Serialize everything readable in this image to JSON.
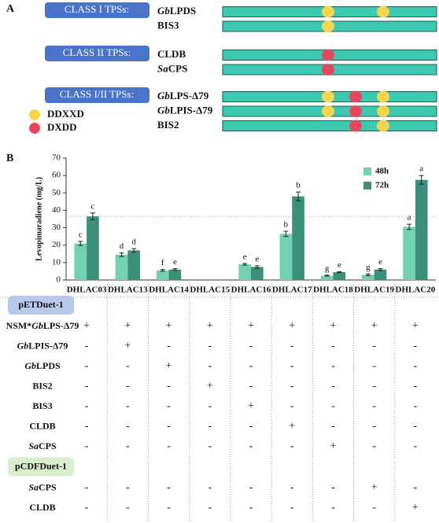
{
  "panel_a": {
    "label": "A",
    "groups": [
      {
        "title": "CLASS I TPSs:",
        "genes": [
          {
            "parts": [
              {
                "text": "Gb",
                "italic": true
              },
              {
                "text": "LPDS"
              }
            ],
            "motifs": [
              "DDXXD",
              null,
              "DDXXD"
            ]
          },
          {
            "parts": [
              {
                "text": "BIS3"
              }
            ],
            "motifs": [
              "DDXXD",
              null,
              null
            ]
          }
        ]
      },
      {
        "title": "CLASS II TPSs:",
        "genes": [
          {
            "parts": [
              {
                "text": "CLDB"
              }
            ],
            "motifs": [
              "DXDD",
              null,
              null
            ]
          },
          {
            "parts": [
              {
                "text": "Sa",
                "italic": true
              },
              {
                "text": "CPS"
              }
            ],
            "motifs": [
              "DXDD",
              null,
              null
            ]
          }
        ]
      },
      {
        "title": "CLASS I/II TPSs:",
        "genes": [
          {
            "parts": [
              {
                "text": "Gb",
                "italic": true
              },
              {
                "text": "LPS-Δ79"
              }
            ],
            "motifs": [
              "DDXXD",
              "DXDD",
              "DDXXD"
            ]
          },
          {
            "parts": [
              {
                "text": "Gb",
                "italic": true
              },
              {
                "text": "LPIS-Δ79"
              }
            ],
            "motifs": [
              "DDXXD",
              "DXDD",
              "DDXXD"
            ]
          },
          {
            "parts": [
              {
                "text": "BIS2"
              }
            ],
            "motifs": [
              null,
              "DXDD",
              "DDXXD"
            ]
          }
        ]
      }
    ],
    "legend": [
      {
        "name": "DDXXD",
        "color": "#f7d54e"
      },
      {
        "name": "DXDD",
        "color": "#e6475d"
      }
    ]
  },
  "panel_b_label": "B",
  "chart_data": {
    "type": "bar",
    "y_label": "Levopimaradiene (mg/L)",
    "categories": [
      "DHLAC03",
      "DHLAC13",
      "DHLAC14",
      "DHLAC15",
      "DHLAC16",
      "DHLAC17",
      "DHLAC18",
      "DHLAC19",
      "DHLAC20"
    ],
    "series": [
      {
        "name": "48h",
        "color": "#72d1b0",
        "values": [
          21,
          14.5,
          5.5,
          0,
          9,
          26.5,
          2.5,
          3,
          30.5
        ],
        "errors": [
          1.2,
          1,
          0.5,
          0,
          0.5,
          1.5,
          0.3,
          0.5,
          1.5
        ],
        "letters": [
          "c",
          "d",
          "f",
          null,
          "e",
          "b",
          "g",
          "g",
          "a"
        ]
      },
      {
        "name": "72h",
        "color": "#3c8f7b",
        "values": [
          36.5,
          17,
          6,
          0,
          7.5,
          48,
          4.5,
          6,
          57.5
        ],
        "errors": [
          2,
          1,
          0.5,
          0,
          0.7,
          2.5,
          0.3,
          0.5,
          2.5
        ],
        "letters": [
          "c",
          "d",
          "e",
          null,
          "e",
          "b",
          "e",
          "e",
          "a"
        ]
      }
    ],
    "reference_line": 36.5,
    "ylim": [
      0,
      70
    ],
    "yticks": [
      0,
      10,
      20,
      30,
      40,
      50,
      60,
      70
    ],
    "legend": "top-right"
  },
  "table": {
    "sections": [
      {
        "title": "pETDuet-1",
        "color": "#b9c9ee",
        "rows": [
          {
            "parts": [
              {
                "text": "NSM*"
              },
              {
                "text": "Gb",
                "italic": true
              },
              {
                "text": "LPS-Δ79"
              }
            ],
            "cells": [
              "+",
              "+",
              "+",
              "+",
              "+",
              "+",
              "+",
              "+",
              "+"
            ]
          },
          {
            "parts": [
              {
                "text": "Gb",
                "italic": true
              },
              {
                "text": "LPIS-Δ79"
              }
            ],
            "cells": [
              "-",
              "+",
              "-",
              "-",
              "-",
              "-",
              "-",
              "-",
              "-"
            ]
          },
          {
            "parts": [
              {
                "text": "Gb",
                "italic": true
              },
              {
                "text": "LPDS"
              }
            ],
            "cells": [
              "-",
              "-",
              "+",
              "-",
              "-",
              "-",
              "-",
              "-",
              "-"
            ]
          },
          {
            "parts": [
              {
                "text": "BIS2"
              }
            ],
            "cells": [
              "-",
              "-",
              "-",
              "+",
              "-",
              "-",
              "-",
              "-",
              "-"
            ]
          },
          {
            "parts": [
              {
                "text": "BIS3"
              }
            ],
            "cells": [
              "-",
              "-",
              "-",
              "-",
              "+",
              "-",
              "-",
              "-",
              "-"
            ]
          },
          {
            "parts": [
              {
                "text": "CLDB"
              }
            ],
            "cells": [
              "-",
              "-",
              "-",
              "-",
              "-",
              "+",
              "-",
              "-",
              "-"
            ]
          },
          {
            "parts": [
              {
                "text": "Sa",
                "italic": true
              },
              {
                "text": "CPS"
              }
            ],
            "cells": [
              "-",
              "-",
              "-",
              "-",
              "-",
              "-",
              "+",
              "-",
              "-"
            ]
          }
        ]
      },
      {
        "title": "pCDFDuet-1",
        "color": "#d9eece",
        "rows": [
          {
            "parts": [
              {
                "text": "Sa",
                "italic": true
              },
              {
                "text": "CPS"
              }
            ],
            "cells": [
              "-",
              "-",
              "-",
              "-",
              "-",
              "-",
              "-",
              "+",
              "-"
            ]
          },
          {
            "parts": [
              {
                "text": "CLDB"
              }
            ],
            "cells": [
              "-",
              "-",
              "-",
              "-",
              "-",
              "-",
              "-",
              "-",
              "+"
            ]
          }
        ]
      }
    ]
  }
}
